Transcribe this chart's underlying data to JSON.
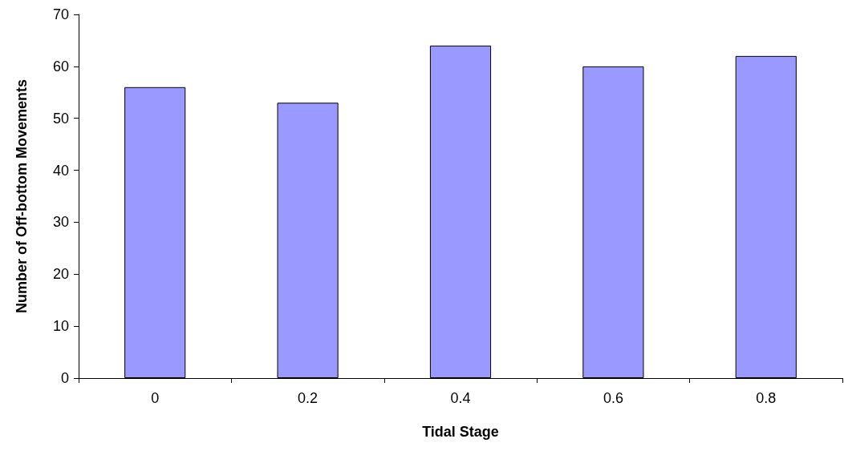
{
  "chart_data": {
    "type": "bar",
    "xlabel": "Tidal Stage",
    "ylabel": "Number of Off-bottom Movements",
    "categories": [
      "0",
      "0.2",
      "0.4",
      "0.6",
      "0.8"
    ],
    "values": [
      56,
      53,
      64,
      60,
      62
    ],
    "color": "#9999ff",
    "ylim": [
      0,
      70
    ],
    "yticks": [
      0,
      10,
      20,
      30,
      40,
      50,
      60,
      70
    ],
    "grid": false
  }
}
